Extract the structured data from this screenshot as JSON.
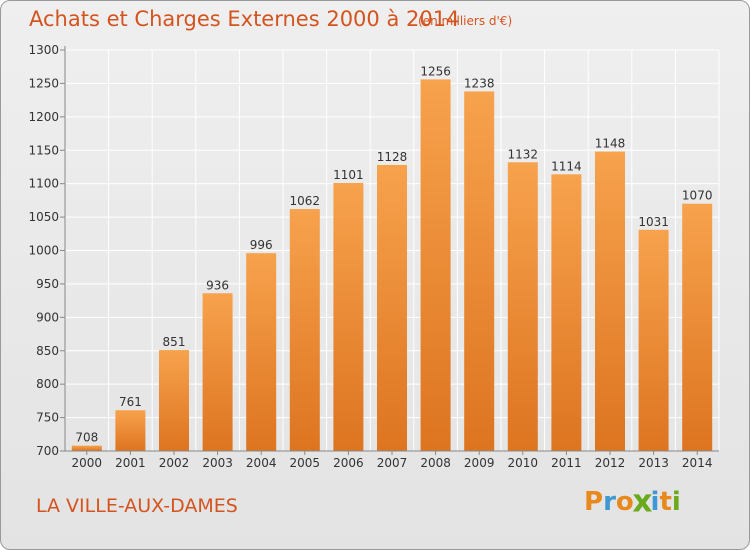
{
  "header": {
    "title": "Achats et Charges Externes 2000 à 2014",
    "subtitle": "(en milliers d'€)"
  },
  "footer": {
    "commune": "LA VILLE-AUX-DAMES",
    "logo": "Proxiti"
  },
  "colors": {
    "title": "#d4541f",
    "bar_light": "#f7a24d",
    "bar_dark": "#dd7420",
    "grid": "#ffffff",
    "logo_letters": [
      "#e8891d",
      "#3f97d4",
      "#e8891d",
      "#6aaa1d",
      "#3f97d4",
      "#e8891d",
      "#6aaa1d"
    ]
  },
  "chart_data": {
    "type": "bar",
    "title": "Achats et Charges Externes 2000 à 2014",
    "subtitle": "(en milliers d'€)",
    "categories": [
      "2000",
      "2001",
      "2002",
      "2003",
      "2004",
      "2005",
      "2006",
      "2007",
      "2008",
      "2009",
      "2010",
      "2011",
      "2012",
      "2013",
      "2014"
    ],
    "values": [
      708,
      761,
      851,
      936,
      996,
      1062,
      1101,
      1128,
      1256,
      1238,
      1132,
      1114,
      1148,
      1031,
      1070
    ],
    "ylim": [
      700,
      1300
    ],
    "yticks": [
      700,
      750,
      800,
      850,
      900,
      950,
      1000,
      1050,
      1100,
      1150,
      1200,
      1250,
      1300
    ],
    "grid": true,
    "xlabel": "",
    "ylabel": ""
  }
}
